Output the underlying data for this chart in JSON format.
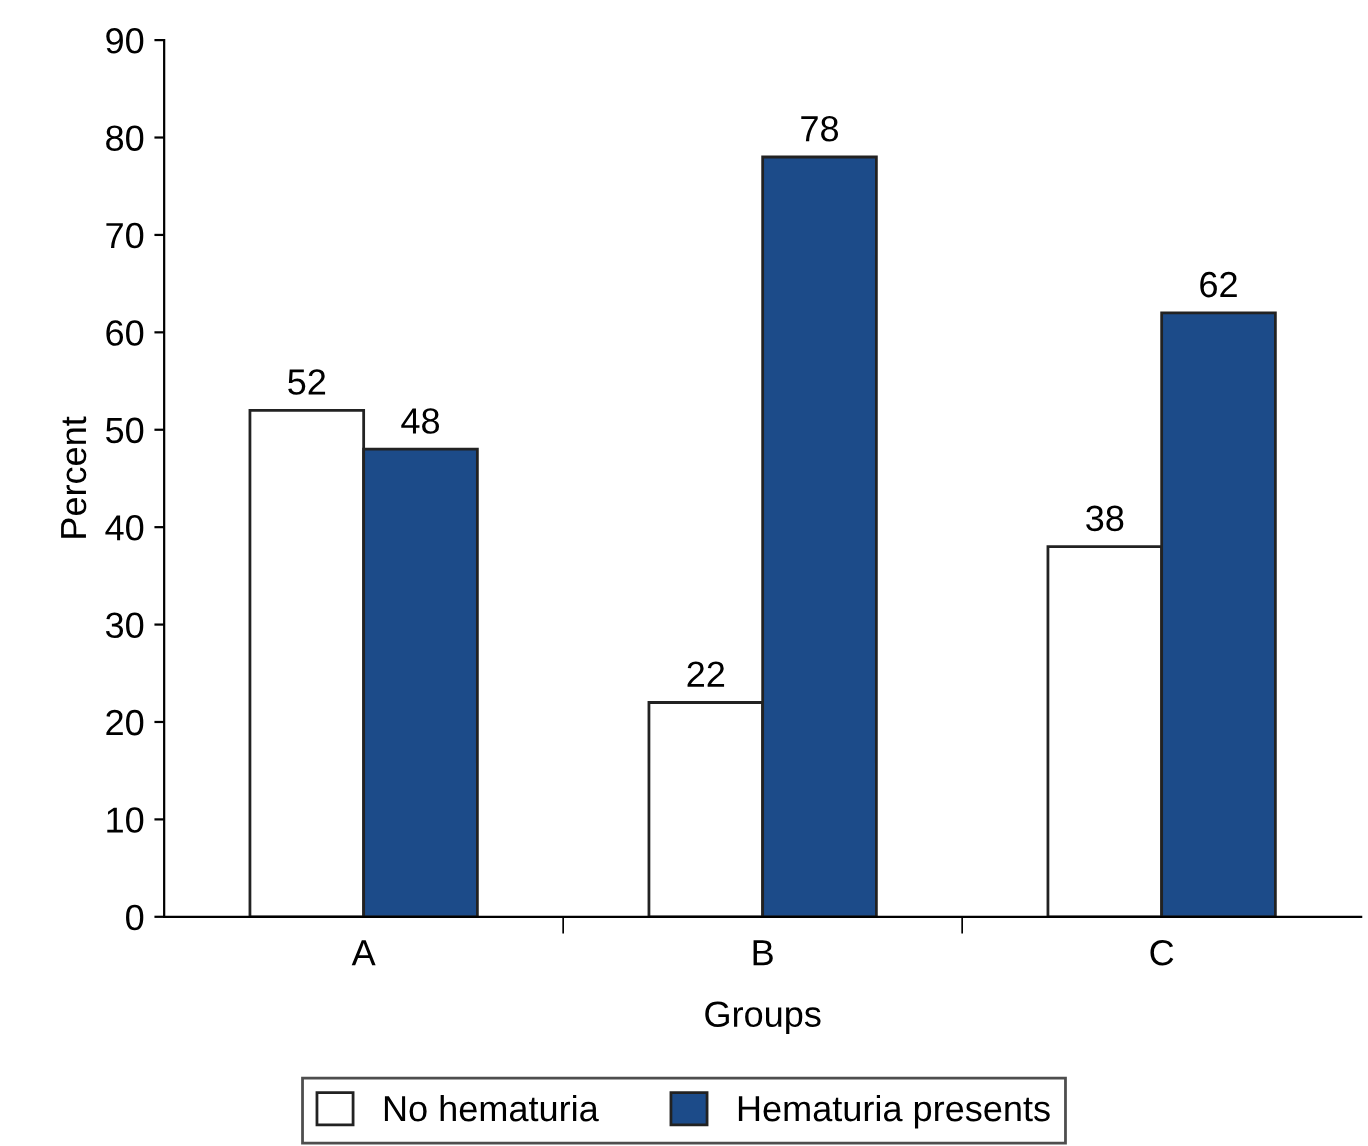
{
  "chart_data": {
    "type": "bar",
    "xlabel": "Groups",
    "ylabel": "Percent",
    "categories": [
      "A",
      "B",
      "C"
    ],
    "series": [
      {
        "name": "No hematuria",
        "color": "#ffffff",
        "values": [
          52,
          22,
          38
        ]
      },
      {
        "name": "Hematuria presents",
        "color": "#1c4b89",
        "values": [
          48,
          78,
          62
        ]
      }
    ],
    "ylim": [
      0,
      90
    ],
    "yticks": [
      0,
      10,
      20,
      30,
      40,
      50,
      60,
      70,
      80,
      90
    ],
    "data_labels": true,
    "legend": "bottom",
    "grid": false
  }
}
